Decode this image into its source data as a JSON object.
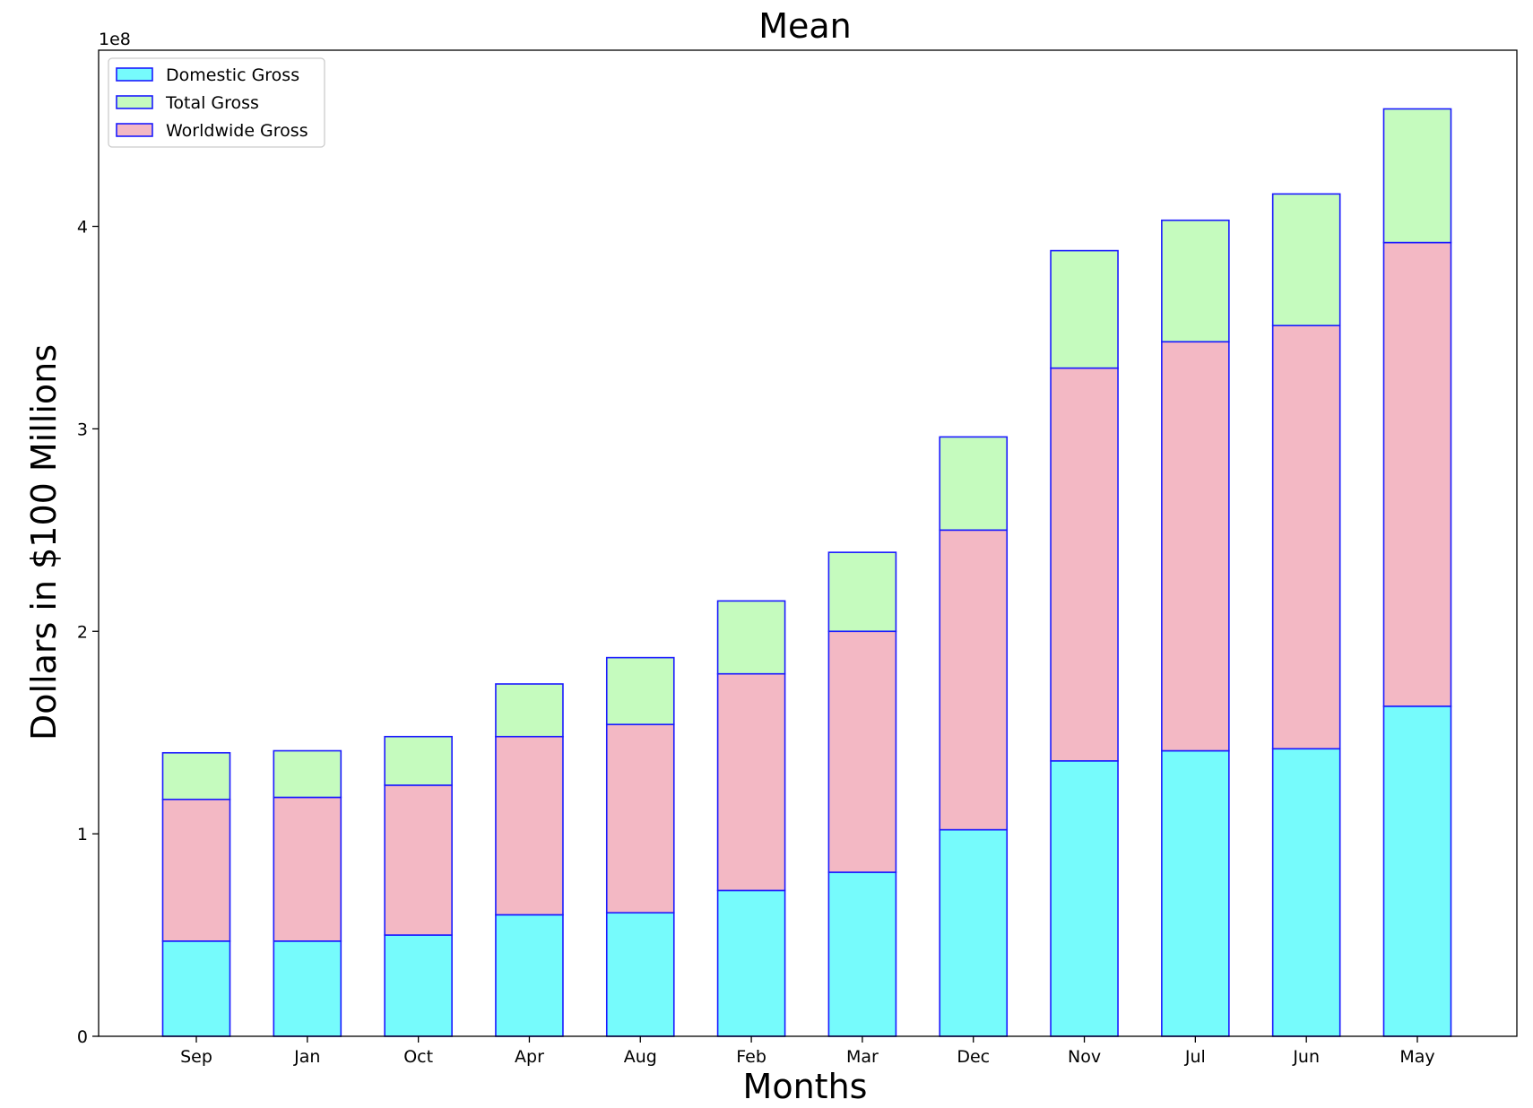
{
  "chart_data": {
    "type": "bar",
    "stacked": true,
    "title": "Mean",
    "xlabel": "Months",
    "ylabel": "Dollars in $100 Millions",
    "y_offset_label": "1e8",
    "ylim": [
      0,
      4.87
    ],
    "yticks": [
      0,
      1,
      2,
      3,
      4
    ],
    "grid": false,
    "legend_position": "top-left",
    "categories": [
      "Sep",
      "Jan",
      "Oct",
      "Apr",
      "Aug",
      "Feb",
      "Mar",
      "Dec",
      "Nov",
      "Jul",
      "Jun",
      "May"
    ],
    "series": [
      {
        "name": "Domestic Gross",
        "color": "#76fbfc",
        "values": [
          0.47,
          0.47,
          0.5,
          0.6,
          0.61,
          0.72,
          0.81,
          1.02,
          1.36,
          1.41,
          1.42,
          1.63
        ]
      },
      {
        "name": "Worldwide Gross",
        "color": "#f3b8c4",
        "values": [
          0.7,
          0.71,
          0.74,
          0.88,
          0.93,
          1.07,
          1.19,
          1.48,
          1.94,
          2.02,
          2.09,
          2.29
        ]
      },
      {
        "name": "Total Gross",
        "color": "#c5fbbe",
        "values": [
          0.23,
          0.23,
          0.24,
          0.26,
          0.33,
          0.36,
          0.39,
          0.46,
          0.58,
          0.6,
          0.65,
          0.66
        ]
      }
    ],
    "legend_order": [
      "Domestic Gross",
      "Total Gross",
      "Worldwide Gross"
    ],
    "edge_color": "#1a1aff"
  }
}
